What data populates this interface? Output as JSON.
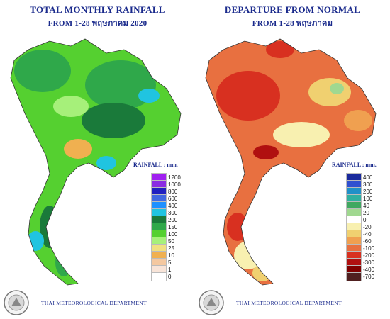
{
  "left": {
    "title_line1": "TOTAL MONTHLY RAINFALL",
    "title_line2": "FROM 1-28 พฤษภาคม 2020",
    "legend_title": "RAINFALL : mm.",
    "legend": [
      {
        "label": "1200",
        "color": "#a020f0"
      },
      {
        "label": "1000",
        "color": "#8a2be2"
      },
      {
        "label": "800",
        "color": "#2020c0"
      },
      {
        "label": "600",
        "color": "#4169e1"
      },
      {
        "label": "400",
        "color": "#1e90ff"
      },
      {
        "label": "300",
        "color": "#20c4e0"
      },
      {
        "label": "200",
        "color": "#1a7a3a"
      },
      {
        "label": "150",
        "color": "#2fa84a"
      },
      {
        "label": "100",
        "color": "#55d030"
      },
      {
        "label": "50",
        "color": "#a6f07a"
      },
      {
        "label": "25",
        "color": "#f0e080"
      },
      {
        "label": "10",
        "color": "#f0b050"
      },
      {
        "label": "5",
        "color": "#f4c8a0"
      },
      {
        "label": "1",
        "color": "#f8e4d8"
      },
      {
        "label": "0",
        "color": "#ffffff"
      }
    ],
    "footer": "THAI METEOROLOGICAL DEPARTMENT"
  },
  "right": {
    "title_line1": "DEPARTURE FROM NORMAL",
    "title_line2": "FROM 1-28 พฤษภาคม",
    "legend_title": "RAINFALL : mm.",
    "legend": [
      {
        "label": "400",
        "color": "#1a2a9c"
      },
      {
        "label": "300",
        "color": "#3050d0"
      },
      {
        "label": "200",
        "color": "#2090c8"
      },
      {
        "label": "100",
        "color": "#30b0a0"
      },
      {
        "label": "40",
        "color": "#40a860"
      },
      {
        "label": "20",
        "color": "#a0d890"
      },
      {
        "label": "0",
        "color": "#ffffff"
      },
      {
        "label": "-20",
        "color": "#f8f0b0"
      },
      {
        "label": "-40",
        "color": "#f0d070"
      },
      {
        "label": "-60",
        "color": "#f0a050"
      },
      {
        "label": "-100",
        "color": "#e87040"
      },
      {
        "label": "-200",
        "color": "#d83020"
      },
      {
        "label": "-300",
        "color": "#b01010"
      },
      {
        "label": "-400",
        "color": "#800000"
      },
      {
        "label": "-700",
        "color": "#502020"
      }
    ],
    "footer": "THAI METEOROLOGICAL DEPARTMENT"
  }
}
